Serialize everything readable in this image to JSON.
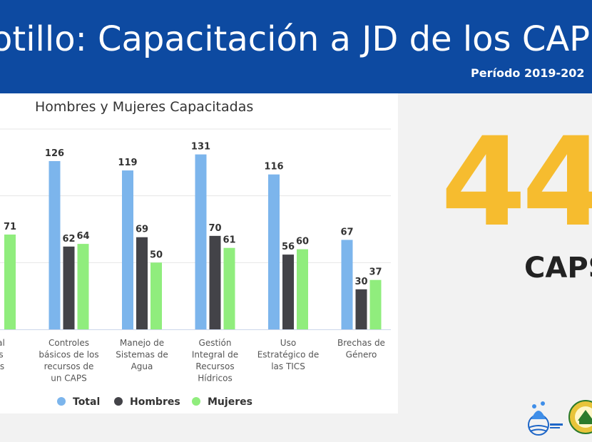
{
  "header": {
    "title": "otillo: Capacitación a JD de los CAP",
    "period": "Período 2019-202"
  },
  "chart_data": {
    "type": "bar",
    "title": "Hombres y Mujeres Capacitadas",
    "categories": [
      [
        "egal",
        "uas",
        "ales"
      ],
      [
        "Controles",
        "básicos de los",
        "recursos de",
        "un CAPS"
      ],
      [
        "Manejo de",
        "Sistemas de",
        "Agua"
      ],
      [
        "Gestión",
        "Integral de",
        "Recursos",
        "Hídricos"
      ],
      [
        "Uso",
        "Estratégico de",
        "las TICS"
      ],
      [
        "Brechas de",
        "Género"
      ]
    ],
    "series": [
      {
        "name": "Total",
        "color": "#7cb5ec",
        "values": [
          null,
          126,
          119,
          131,
          116,
          67
        ],
        "labels": [
          "",
          "126",
          "119",
          "131",
          "116",
          "67"
        ]
      },
      {
        "name": "Hombres",
        "color": "#434348",
        "values": [
          null,
          62,
          69,
          70,
          56,
          30
        ],
        "labels": [
          "",
          "62",
          "69",
          "70",
          "56",
          "30"
        ]
      },
      {
        "name": "Mujeres",
        "color": "#90ed7d",
        "values": [
          71,
          64,
          50,
          61,
          60,
          37
        ],
        "labels": [
          "71",
          "64",
          "50",
          "61",
          "60",
          "37"
        ]
      }
    ],
    "ylim": [
      0,
      150
    ],
    "grid": true,
    "legend_position": "bottom"
  },
  "summary": {
    "value": "44",
    "label": "CAPS",
    "color": "#f6bc2f"
  },
  "logos": [
    "water-logo-icon",
    "simas-logo-icon"
  ]
}
